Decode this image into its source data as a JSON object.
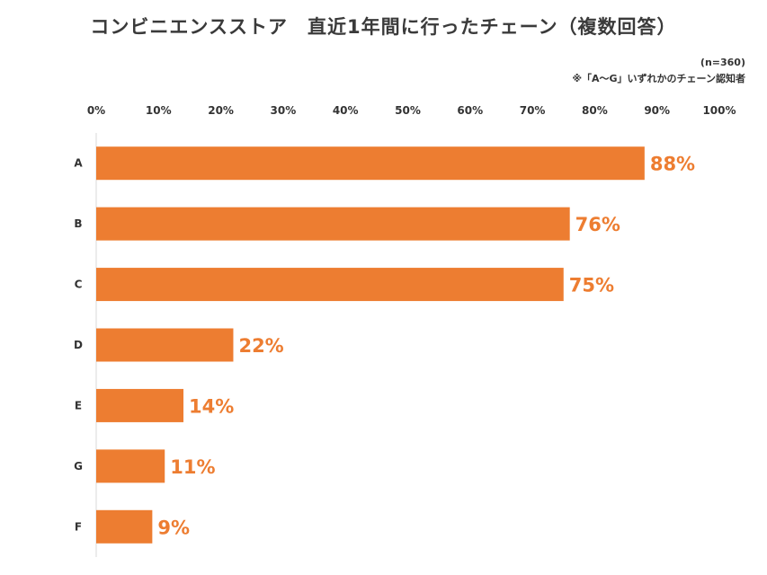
{
  "title": "コンビニエンスストア　直近1年間に行ったチェーン（複数回答）",
  "sample_note": "(n=360)",
  "footnote": "※「A～G」いずれかのチェーン認知者",
  "colors": {
    "bar": "#ED7D31",
    "label": "#ED7D31",
    "axis": "#d9d9d9",
    "text": "#333333"
  },
  "chart_data": {
    "type": "bar",
    "orientation": "horizontal",
    "title": "コンビニエンスストア　直近1年間に行ったチェーン（複数回答）",
    "categories": [
      "A",
      "B",
      "C",
      "D",
      "E",
      "G",
      "F"
    ],
    "values": [
      88,
      76,
      75,
      22,
      14,
      11,
      9
    ],
    "value_labels": [
      "88%",
      "76%",
      "75%",
      "22%",
      "14%",
      "11%",
      "9%"
    ],
    "xlim": [
      0,
      100
    ],
    "x_ticks": [
      0,
      10,
      20,
      30,
      40,
      50,
      60,
      70,
      80,
      90,
      100
    ],
    "x_tick_labels": [
      "0%",
      "10%",
      "20%",
      "30%",
      "40%",
      "50%",
      "60%",
      "70%",
      "80%",
      "90%",
      "100%"
    ],
    "x_axis_position": "top",
    "grid": false,
    "legend": "none"
  }
}
